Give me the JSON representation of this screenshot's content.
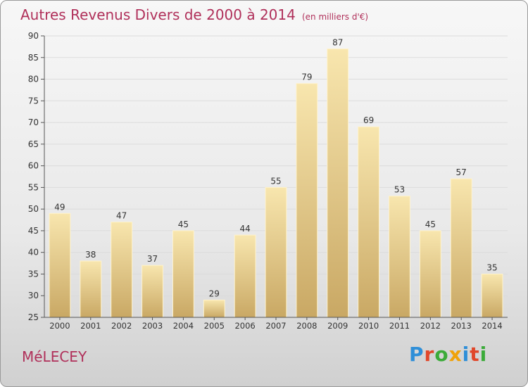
{
  "title": "Autres Revenus Divers de 2000 à 2014",
  "subtitle": "(en milliers d'€)",
  "town": "MéLECEY",
  "logo": "Proxiti",
  "colors": {
    "title": "#b0305a",
    "bar_light": "#f7e2a8",
    "bar_dark": "#c8a660"
  },
  "chart_data": {
    "type": "bar",
    "categories": [
      "2000",
      "2001",
      "2002",
      "2003",
      "2004",
      "2005",
      "2006",
      "2007",
      "2008",
      "2009",
      "2010",
      "2011",
      "2012",
      "2013",
      "2014"
    ],
    "values": [
      49,
      38,
      47,
      37,
      45,
      29,
      44,
      55,
      79,
      87,
      69,
      53,
      45,
      57,
      35
    ],
    "ylim": [
      25,
      90
    ],
    "yticks": [
      25,
      30,
      35,
      40,
      45,
      50,
      55,
      60,
      65,
      70,
      75,
      80,
      85,
      90
    ],
    "grid": true,
    "title": "Autres Revenus Divers de 2000 à 2014",
    "subtitle": "(en milliers d'€)"
  }
}
